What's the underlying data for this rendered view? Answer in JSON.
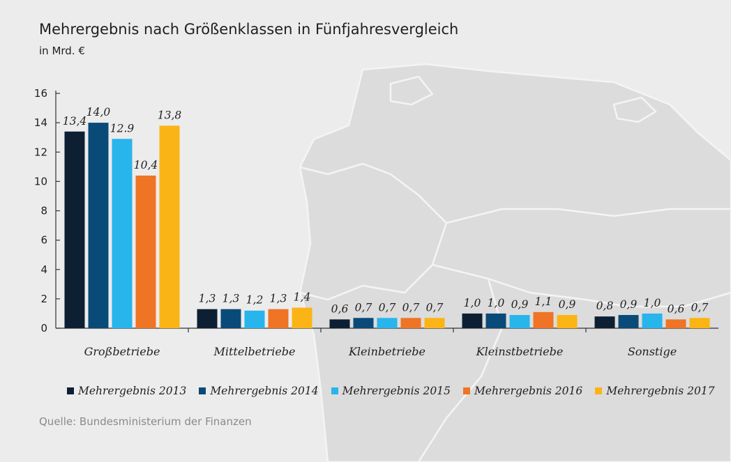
{
  "title": "Mehrergebnis nach Größenklassen in Fünfjahresvergleich",
  "unit": "in Mrd. €",
  "source": "Quelle: Bundesministerium der Finanzen",
  "chart_data": {
    "type": "bar",
    "title": "Mehrergebnis nach Größenklassen in Fünfjahresvergleich",
    "ylabel": "in Mrd. €",
    "xlabel": "",
    "ylim": [
      0,
      16
    ],
    "yticks": [
      0,
      2,
      4,
      6,
      8,
      10,
      12,
      14,
      16
    ],
    "categories": [
      "Großbetriebe",
      "Mittelbetriebe",
      "Kleinbetriebe",
      "Kleinstbetriebe",
      "Sonstige"
    ],
    "series": [
      {
        "name": "Mehrergebnis 2013",
        "color": "#0d1f33",
        "values": [
          13.4,
          1.3,
          0.6,
          1.0,
          0.8
        ],
        "labels": [
          "13,4",
          "1,3",
          "0,6",
          "1,0",
          "0,8"
        ]
      },
      {
        "name": "Mehrergebnis 2014",
        "color": "#0a4a78",
        "values": [
          14.0,
          1.3,
          0.7,
          1.0,
          0.9
        ],
        "labels": [
          "14,0",
          "1,3",
          "0,7",
          "1,0",
          "0,9"
        ]
      },
      {
        "name": "Mehrergebnis 2015",
        "color": "#27b5ec",
        "values": [
          12.9,
          1.2,
          0.7,
          0.9,
          1.0
        ],
        "labels": [
          "12.9",
          "1,2",
          "0,7",
          "0,9",
          "1,0"
        ]
      },
      {
        "name": "Mehrergebnis 2016",
        "color": "#ef7425",
        "values": [
          10.4,
          1.3,
          0.7,
          1.1,
          0.6
        ],
        "labels": [
          "10,4",
          "1,3",
          "0,7",
          "1,1",
          "0,6"
        ]
      },
      {
        "name": "Mehrergebnis 2017",
        "color": "#fbb415",
        "values": [
          13.8,
          1.4,
          0.7,
          0.9,
          0.7
        ],
        "labels": [
          "13,8",
          "1,4",
          "0,7",
          "0,9",
          "0,7"
        ]
      }
    ],
    "legend": "bottom",
    "grid": false
  }
}
